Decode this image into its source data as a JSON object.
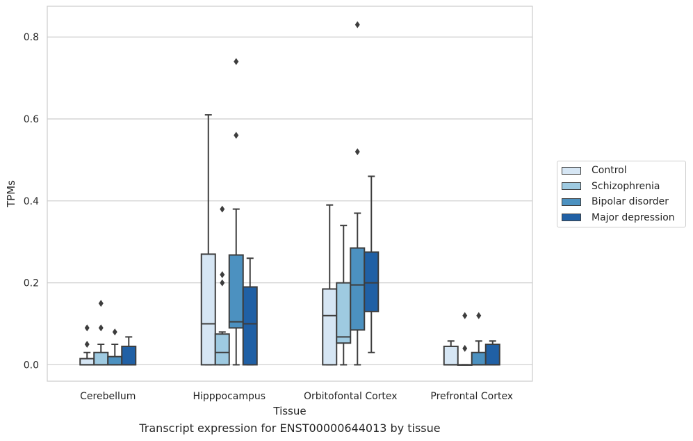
{
  "caption": "Transcript expression for ENST00000644013 by tissue",
  "chart_data": {
    "type": "box",
    "xlabel": "Tissue",
    "ylabel": "TPMs",
    "ylim": [
      -0.04,
      0.875
    ],
    "yticks": [
      "0.0",
      "0.2",
      "0.4",
      "0.6",
      "0.8"
    ],
    "grid": true,
    "legend_position": "right",
    "categories": [
      "Cerebellum",
      "Hipppocampus",
      "Orbitofontal Cortex",
      "Prefrontal Cortex"
    ],
    "series": [
      {
        "name": "Control",
        "color": "#d6e6f4",
        "boxes": [
          {
            "whislo": 0,
            "q1": 0,
            "med": 0,
            "q3": 0.015,
            "whishi": 0.03,
            "fliers": [
              0.05,
              0.09
            ]
          },
          {
            "whislo": 0,
            "q1": 0,
            "med": 0.1,
            "q3": 0.27,
            "whishi": 0.61,
            "fliers": []
          },
          {
            "whislo": 0,
            "q1": 0,
            "med": 0.12,
            "q3": 0.185,
            "whishi": 0.39,
            "fliers": []
          },
          {
            "whislo": 0,
            "q1": 0,
            "med": 0,
            "q3": 0.045,
            "whishi": 0.058,
            "fliers": []
          }
        ]
      },
      {
        "name": "Schizophrenia",
        "color": "#9ecae1",
        "boxes": [
          {
            "whislo": 0,
            "q1": 0,
            "med": 0,
            "q3": 0.03,
            "whishi": 0.05,
            "fliers": [
              0.09,
              0.15
            ]
          },
          {
            "whislo": 0,
            "q1": 0,
            "med": 0.03,
            "q3": 0.075,
            "whishi": 0.08,
            "fliers": [
              0.2,
              0.22,
              0.38
            ]
          },
          {
            "whislo": 0,
            "q1": 0.053,
            "med": 0.068,
            "q3": 0.2,
            "whishi": 0.34,
            "fliers": []
          },
          {
            "whislo": 0,
            "q1": 0,
            "med": 0,
            "q3": 0,
            "whishi": 0,
            "fliers": [
              0.04,
              0.12
            ]
          }
        ]
      },
      {
        "name": "Bipolar disorder",
        "color": "#4c91c0",
        "boxes": [
          {
            "whislo": 0,
            "q1": 0,
            "med": 0,
            "q3": 0.02,
            "whishi": 0.05,
            "fliers": [
              0.08
            ]
          },
          {
            "whislo": 0,
            "q1": 0.09,
            "med": 0.105,
            "q3": 0.268,
            "whishi": 0.38,
            "fliers": [
              0.56,
              0.74
            ]
          },
          {
            "whislo": 0,
            "q1": 0.085,
            "med": 0.195,
            "q3": 0.285,
            "whishi": 0.37,
            "fliers": [
              0.52,
              0.83
            ]
          },
          {
            "whislo": 0,
            "q1": 0,
            "med": 0,
            "q3": 0.03,
            "whishi": 0.058,
            "fliers": [
              0.12
            ]
          }
        ]
      },
      {
        "name": "Major depression",
        "color": "#2060a5",
        "boxes": [
          {
            "whislo": 0,
            "q1": 0,
            "med": 0,
            "q3": 0.045,
            "whishi": 0.068,
            "fliers": []
          },
          {
            "whislo": 0,
            "q1": 0,
            "med": 0.1,
            "q3": 0.19,
            "whishi": 0.26,
            "fliers": []
          },
          {
            "whislo": 0.03,
            "q1": 0.13,
            "med": 0.2,
            "q3": 0.275,
            "whishi": 0.46,
            "fliers": []
          },
          {
            "whislo": 0,
            "q1": 0,
            "med": 0,
            "q3": 0.05,
            "whishi": 0.058,
            "fliers": []
          }
        ]
      }
    ]
  }
}
